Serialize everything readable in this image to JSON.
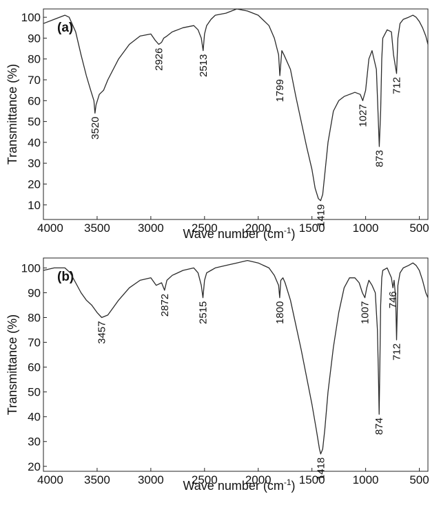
{
  "chart_data": [
    {
      "type": "line",
      "panel_label": "(a)",
      "xlabel": "Wave number (cm",
      "xlabel_sup": "-1",
      "xlabel_end": ")",
      "ylabel": "Transmittance (%)",
      "xlim": [
        4000,
        420
      ],
      "ylim": [
        3,
        104
      ],
      "x_reversed": true,
      "x_ticks": [
        4000,
        3500,
        3000,
        2500,
        2000,
        1500,
        1000,
        500
      ],
      "y_ticks": [
        10,
        20,
        30,
        40,
        50,
        60,
        70,
        80,
        90,
        100
      ],
      "color": "#2a2a2a",
      "series": [
        {
          "x": [
            4000,
            3900,
            3800,
            3760,
            3700,
            3650,
            3600,
            3560,
            3530,
            3520,
            3510,
            3480,
            3440,
            3400,
            3300,
            3200,
            3100,
            3000,
            2960,
            2926,
            2900,
            2880,
            2850,
            2800,
            2700,
            2600,
            2560,
            2530,
            2513,
            2500,
            2480,
            2440,
            2400,
            2300,
            2200,
            2100,
            2000,
            1900,
            1850,
            1810,
            1799,
            1780,
            1760,
            1700,
            1650,
            1600,
            1550,
            1500,
            1470,
            1440,
            1419,
            1400,
            1380,
            1350,
            1300,
            1250,
            1200,
            1150,
            1100,
            1050,
            1027,
            1000,
            970,
            940,
            900,
            885,
            873,
            860,
            850,
            840,
            800,
            760,
            740,
            725,
            712,
            700,
            680,
            650,
            600,
            560,
            530,
            500,
            470,
            440,
            420
          ],
          "y": [
            97,
            99,
            101,
            100,
            93,
            82,
            72,
            65,
            60,
            54,
            58,
            63,
            65,
            70,
            80,
            87,
            91,
            92,
            89,
            87,
            88,
            90,
            91,
            93,
            95,
            96,
            94,
            90,
            84,
            92,
            96,
            99,
            101,
            102,
            104,
            103,
            101,
            96,
            90,
            82,
            72,
            84,
            82,
            75,
            62,
            50,
            38,
            27,
            18,
            13,
            12,
            15,
            25,
            40,
            55,
            60,
            62,
            63,
            64,
            63,
            60,
            65,
            80,
            84,
            75,
            55,
            38,
            55,
            80,
            90,
            94,
            93,
            82,
            77,
            73,
            90,
            97,
            99,
            100,
            101,
            100,
            98,
            95,
            91,
            87
          ]
        }
      ],
      "annotations": [
        {
          "text": "3520",
          "x": 3520,
          "y": 54
        },
        {
          "text": "2926",
          "x": 2926,
          "y": 87
        },
        {
          "text": "2513",
          "x": 2513,
          "y": 84
        },
        {
          "text": "1799",
          "x": 1799,
          "y": 72
        },
        {
          "text": "1419",
          "x": 1419,
          "y": 12
        },
        {
          "text": "1027",
          "x": 1027,
          "y": 60
        },
        {
          "text": "873",
          "x": 873,
          "y": 38
        },
        {
          "text": "712",
          "x": 712,
          "y": 73
        }
      ]
    },
    {
      "type": "line",
      "panel_label": "(b)",
      "xlabel": "Wave number (cm",
      "xlabel_sup": "-1",
      "xlabel_end": ")",
      "ylabel": "Transmittance (%)",
      "xlim": [
        4000,
        420
      ],
      "ylim": [
        18,
        104
      ],
      "x_reversed": true,
      "x_ticks": [
        4000,
        3500,
        3000,
        2500,
        2000,
        1500,
        1000,
        500
      ],
      "y_ticks": [
        20,
        30,
        40,
        50,
        60,
        70,
        80,
        90,
        100
      ],
      "color": "#2a2a2a",
      "series": [
        {
          "x": [
            4000,
            3900,
            3800,
            3750,
            3700,
            3650,
            3600,
            3550,
            3500,
            3457,
            3400,
            3350,
            3300,
            3200,
            3100,
            3000,
            2950,
            2900,
            2872,
            2850,
            2800,
            2700,
            2600,
            2560,
            2530,
            2515,
            2500,
            2480,
            2440,
            2400,
            2300,
            2200,
            2100,
            2000,
            1900,
            1850,
            1810,
            1800,
            1790,
            1770,
            1750,
            1700,
            1650,
            1600,
            1550,
            1500,
            1460,
            1430,
            1418,
            1400,
            1380,
            1350,
            1300,
            1250,
            1200,
            1150,
            1100,
            1060,
            1030,
            1007,
            990,
            970,
            940,
            910,
            890,
            880,
            874,
            868,
            860,
            850,
            840,
            800,
            760,
            746,
            735,
            720,
            712,
            700,
            680,
            650,
            600,
            560,
            530,
            500,
            470,
            440,
            420
          ],
          "y": [
            99,
            100,
            100,
            98,
            94,
            90,
            87,
            85,
            82,
            80,
            81,
            84,
            87,
            92,
            95,
            96,
            93,
            94,
            91,
            95,
            97,
            99,
            100,
            98,
            93,
            88,
            95,
            98,
            99,
            100,
            101,
            102,
            103,
            102,
            100,
            97,
            93,
            88,
            95,
            96,
            94,
            87,
            77,
            67,
            56,
            45,
            35,
            27,
            25,
            27,
            35,
            50,
            68,
            82,
            92,
            96,
            96,
            94,
            90,
            88,
            92,
            95,
            93,
            90,
            75,
            55,
            41,
            60,
            85,
            96,
            99,
            100,
            96,
            92,
            95,
            88,
            71,
            93,
            98,
            100,
            101,
            102,
            101,
            99,
            95,
            90,
            88
          ]
        }
      ],
      "annotations": [
        {
          "text": "3457",
          "x": 3457,
          "y": 80
        },
        {
          "text": "2872",
          "x": 2872,
          "y": 91
        },
        {
          "text": "2515",
          "x": 2515,
          "y": 88
        },
        {
          "text": "1800",
          "x": 1800,
          "y": 88
        },
        {
          "text": "1418",
          "x": 1418,
          "y": 25
        },
        {
          "text": "1007",
          "x": 1007,
          "y": 88
        },
        {
          "text": "874",
          "x": 874,
          "y": 41
        },
        {
          "text": "746",
          "x": 746,
          "y": 92
        },
        {
          "text": "712",
          "x": 712,
          "y": 71
        }
      ]
    }
  ]
}
